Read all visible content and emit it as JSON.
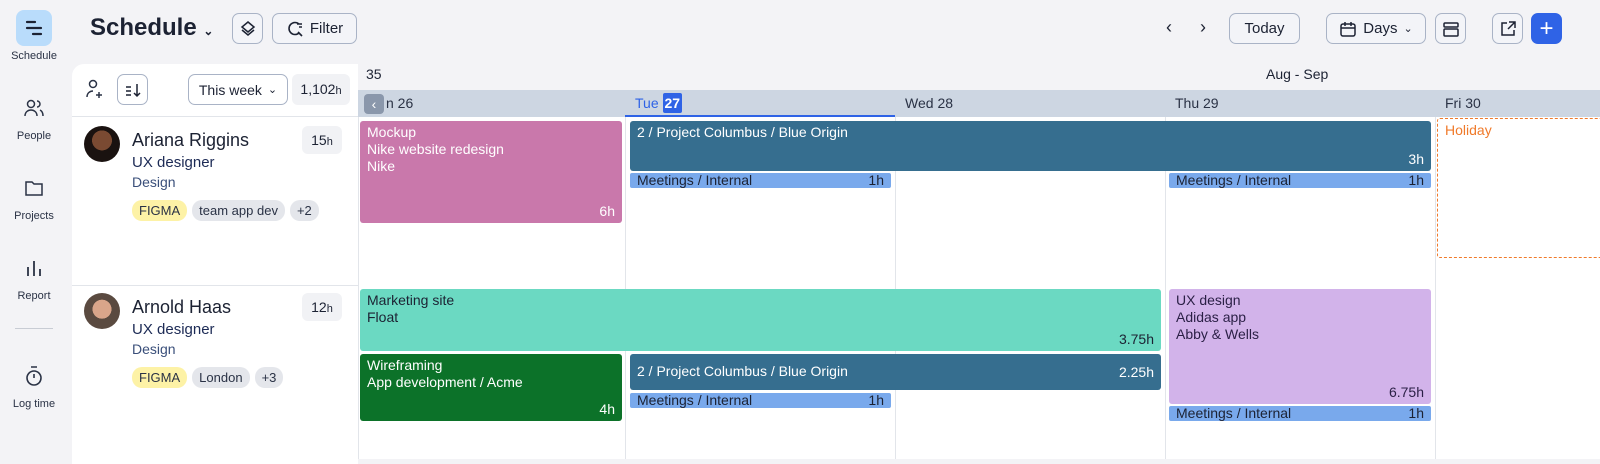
{
  "nav": [
    {
      "label": "Schedule",
      "icon": "schedule-icon",
      "active": true
    },
    {
      "label": "People",
      "icon": "people-icon"
    },
    {
      "label": "Projects",
      "icon": "folder-icon"
    },
    {
      "label": "Report",
      "icon": "report-icon"
    },
    {
      "label": "Log time",
      "icon": "timer-icon"
    }
  ],
  "header": {
    "title": "Schedule",
    "filter_label": "Filter",
    "today_label": "Today",
    "view_label": "Days"
  },
  "panel": {
    "range_label": "This week",
    "total_hours": "1,102",
    "hours_unit": "h"
  },
  "calendar": {
    "week_number": "35",
    "month_label": "Aug - Sep",
    "days": [
      {
        "name": "Mon",
        "num": "26",
        "visible": "n 26"
      },
      {
        "name": "Tue",
        "num": "27",
        "today": true
      },
      {
        "name": "Wed",
        "num": "28"
      },
      {
        "name": "Thu",
        "num": "29"
      },
      {
        "name": "Fri",
        "num": "30"
      }
    ]
  },
  "people": [
    {
      "name": "Ariana Riggins",
      "role": "UX designer",
      "dept": "Design",
      "hours": "15",
      "tags": [
        "FIGMA",
        "team app dev",
        "+2"
      ],
      "events": [
        {
          "l1": "Mockup",
          "l2": "Nike website redesign",
          "l3": "Nike",
          "hours": "6h",
          "color": "#c978ab"
        },
        {
          "l1": "2 / Project Columbus / Blue Origin",
          "hours": "3h",
          "color": "#366e8f"
        },
        {
          "l1": "Meetings / Internal",
          "hours": "1h"
        },
        {
          "l1": "Meetings / Internal",
          "hours": "1h"
        },
        {
          "l1": "Holiday",
          "color": "#f07a2a"
        }
      ]
    },
    {
      "name": "Arnold Haas",
      "role": "UX designer",
      "dept": "Design",
      "hours": "12",
      "tags": [
        "FIGMA",
        "London",
        "+3"
      ],
      "events": [
        {
          "l1": "Marketing site",
          "l2": "Float",
          "hours": "3.75h",
          "color": "#6bd9c2"
        },
        {
          "l1": "UX design",
          "l2": "Adidas app",
          "l3": "Abby & Wells",
          "hours": "6.75h",
          "color": "#d2b3ea"
        },
        {
          "l1": "Wireframing",
          "l2": "App development / Acme",
          "hours": "4h",
          "color": "#0c7229"
        },
        {
          "l1": "2 / Project Columbus / Blue Origin",
          "hours": "2.25h",
          "color": "#366e8f"
        },
        {
          "l1": "Meetings / Internal",
          "hours": "1h"
        },
        {
          "l1": "Meetings / Internal",
          "hours": "1h"
        }
      ]
    }
  ],
  "colors": {
    "accent": "#2f63e6",
    "meeting": "#79a9ec"
  }
}
